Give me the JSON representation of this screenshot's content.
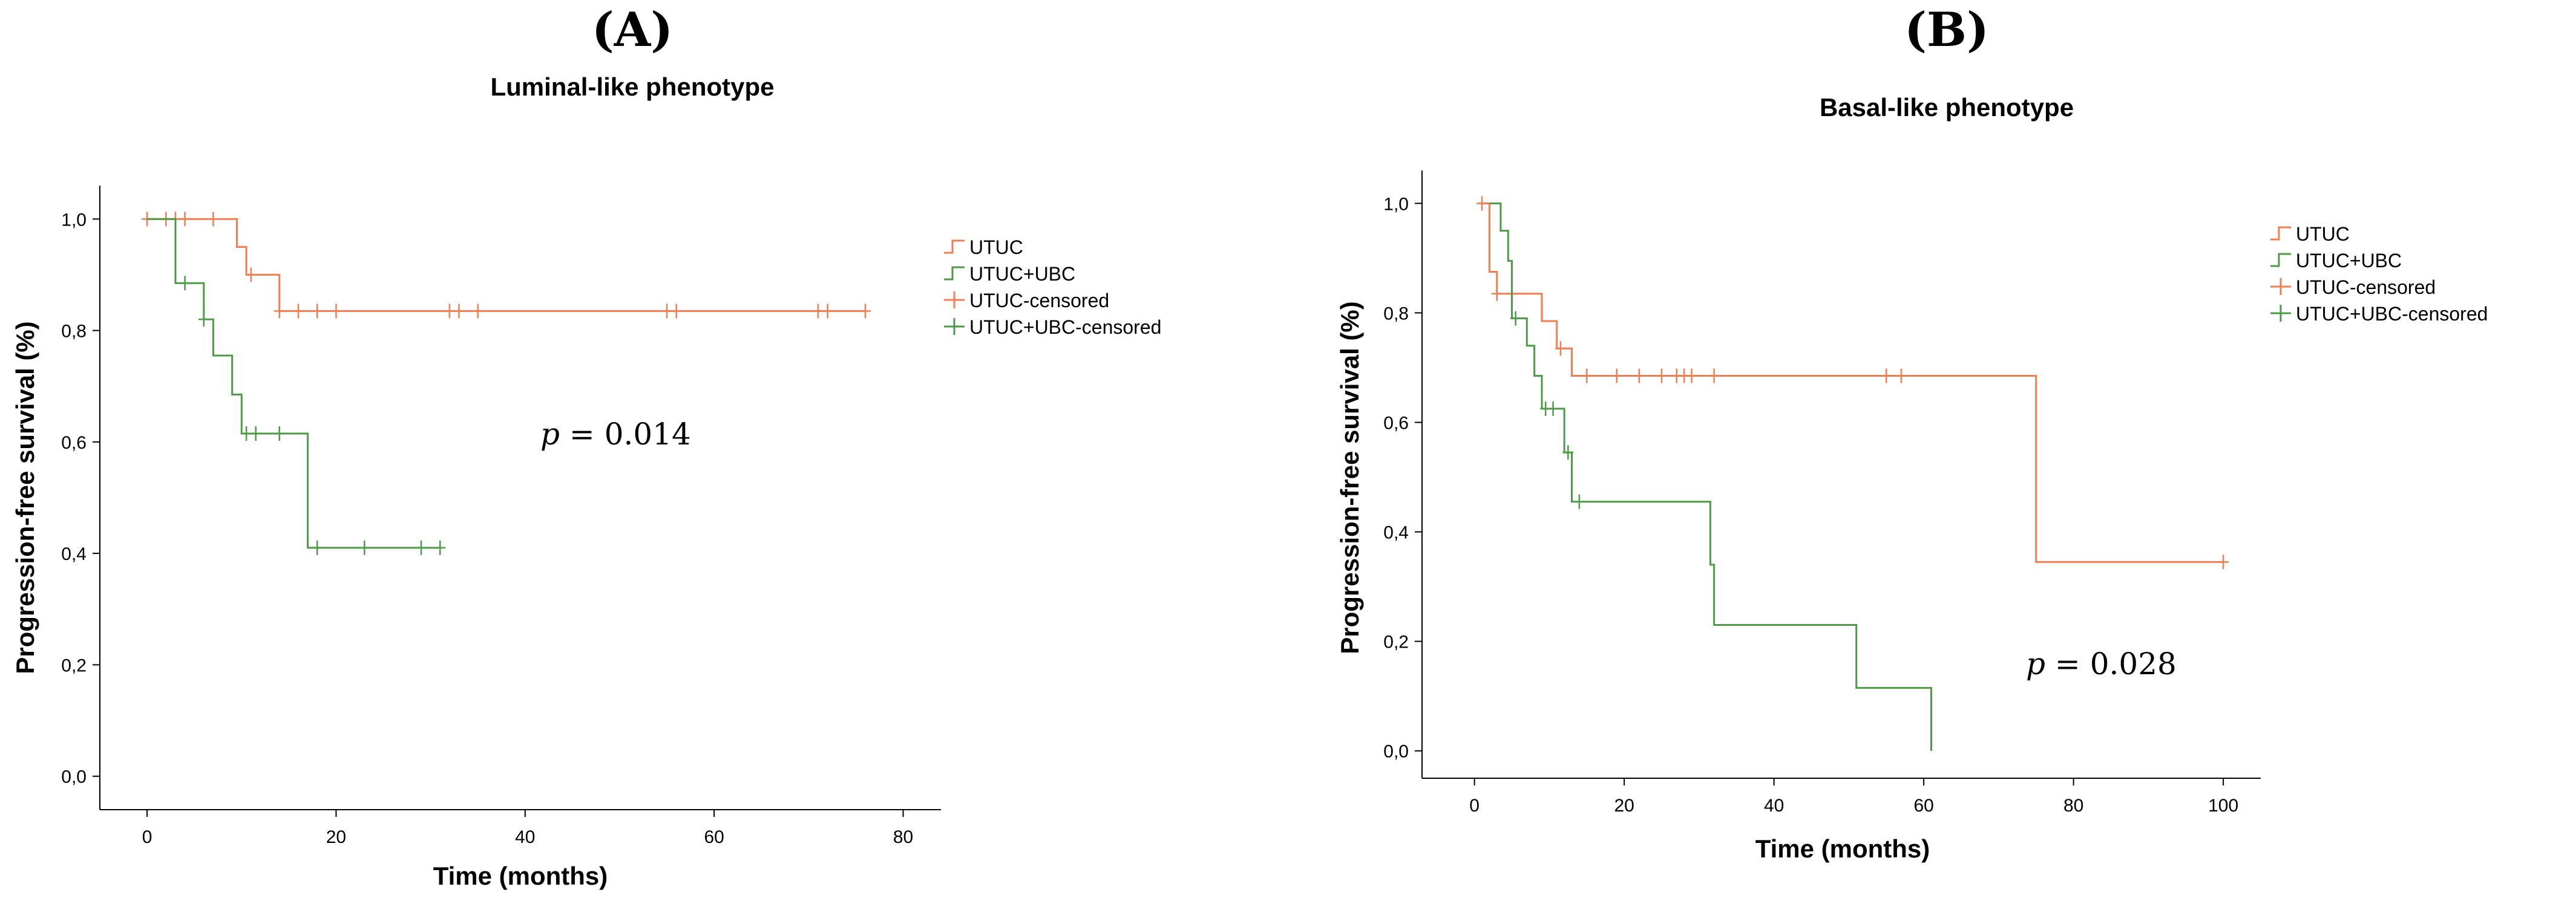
{
  "chart_data": [
    {
      "type": "line",
      "subtype": "kaplan-meier",
      "panel_label": "(A)",
      "title": "Luminal-like phenotype",
      "xlabel": "Time (months)",
      "ylabel": "Progression-free survival (%)",
      "xlim": [
        -5,
        84
      ],
      "ylim": [
        -0.06,
        1.06
      ],
      "xticks": [
        0,
        20,
        40,
        60,
        80
      ],
      "xtick_labels": [
        "0",
        "20",
        "40",
        "60",
        "80"
      ],
      "yticks": [
        0.0,
        0.2,
        0.4,
        0.6,
        0.8,
        1.0
      ],
      "ytick_labels": [
        "0,0",
        "0,2",
        "0,4",
        "0,6",
        "0,8",
        "1,0"
      ],
      "legend_position": "top-right",
      "annotation": {
        "p_symbol": "p",
        "p_value": " = 0.014",
        "at": [
          45,
          0.61
        ]
      },
      "legend": [
        {
          "label": "UTUC",
          "color": "#F07E52",
          "kind": "step"
        },
        {
          "label": "UTUC+UBC",
          "color": "#4E9A47",
          "kind": "step"
        },
        {
          "label": "UTUC-censored",
          "color": "#F07E52",
          "kind": "censor"
        },
        {
          "label": "UTUC+UBC-censored",
          "color": "#4E9A47",
          "kind": "censor"
        }
      ],
      "series": [
        {
          "name": "UTUC",
          "color": "#F07E52",
          "steps": [
            [
              0,
              1.0
            ],
            [
              9.5,
              0.95
            ],
            [
              10.5,
              0.9
            ],
            [
              14,
              0.835
            ],
            [
              76,
              0.835
            ]
          ],
          "censored": [
            [
              0,
              1.0
            ],
            [
              2,
              1.0
            ],
            [
              3,
              1.0
            ],
            [
              4,
              1.0
            ],
            [
              7,
              1.0
            ],
            [
              11,
              0.9
            ],
            [
              14,
              0.835
            ],
            [
              16,
              0.835
            ],
            [
              18,
              0.835
            ],
            [
              20,
              0.835
            ],
            [
              32,
              0.835
            ],
            [
              33,
              0.835
            ],
            [
              35,
              0.835
            ],
            [
              55,
              0.835
            ],
            [
              56,
              0.835
            ],
            [
              71,
              0.835
            ],
            [
              72,
              0.835
            ],
            [
              76,
              0.835
            ]
          ]
        },
        {
          "name": "UTUC+UBC",
          "color": "#4E9A47",
          "steps": [
            [
              0,
              1.0
            ],
            [
              3,
              0.885
            ],
            [
              6,
              0.82
            ],
            [
              7,
              0.755
            ],
            [
              9,
              0.685
            ],
            [
              10,
              0.615
            ],
            [
              17,
              0.41
            ],
            [
              31,
              0.41
            ]
          ],
          "censored": [
            [
              4,
              0.885
            ],
            [
              6,
              0.82
            ],
            [
              10.5,
              0.615
            ],
            [
              11.5,
              0.615
            ],
            [
              14,
              0.615
            ],
            [
              18,
              0.41
            ],
            [
              23,
              0.41
            ],
            [
              29,
              0.41
            ],
            [
              31,
              0.41
            ]
          ]
        }
      ]
    },
    {
      "type": "line",
      "subtype": "kaplan-meier",
      "panel_label": "(B)",
      "title": "Basal-like phenotype",
      "xlabel": "Time (months)",
      "ylabel": "Progression-free survival (%)",
      "xlim": [
        -7,
        105
      ],
      "ylim": [
        -0.05,
        1.06
      ],
      "xticks": [
        0,
        20,
        40,
        60,
        80,
        100
      ],
      "xtick_labels": [
        "0",
        "20",
        "40",
        "60",
        "80",
        "100"
      ],
      "yticks": [
        0.0,
        0.2,
        0.4,
        0.6,
        0.8,
        1.0
      ],
      "ytick_labels": [
        "0,0",
        "0,2",
        "0,4",
        "0,6",
        "0,8",
        "1,0"
      ],
      "legend_position": "top-right",
      "annotation": {
        "p_symbol": "p",
        "p_value": " = 0.028",
        "at": [
          74,
          0.16
        ]
      },
      "legend": [
        {
          "label": "UTUC",
          "color": "#F07E52",
          "kind": "step"
        },
        {
          "label": "UTUC+UBC",
          "color": "#4E9A47",
          "kind": "step"
        },
        {
          "label": "UTUC-censored",
          "color": "#F07E52",
          "kind": "censor"
        },
        {
          "label": "UTUC+UBC-censored",
          "color": "#4E9A47",
          "kind": "censor"
        }
      ],
      "series": [
        {
          "name": "UTUC",
          "color": "#F07E52",
          "steps": [
            [
              1,
              1.0
            ],
            [
              2,
              0.875
            ],
            [
              3,
              0.835
            ],
            [
              9,
              0.785
            ],
            [
              11,
              0.735
            ],
            [
              13,
              0.685
            ],
            [
              75,
              0.685
            ],
            [
              75,
              0.345
            ],
            [
              100,
              0.345
            ]
          ],
          "censored": [
            [
              1,
              1.0
            ],
            [
              3,
              0.835
            ],
            [
              11.5,
              0.735
            ],
            [
              15,
              0.685
            ],
            [
              19,
              0.685
            ],
            [
              22,
              0.685
            ],
            [
              25,
              0.685
            ],
            [
              27,
              0.685
            ],
            [
              28,
              0.685
            ],
            [
              29,
              0.685
            ],
            [
              32,
              0.685
            ],
            [
              55,
              0.685
            ],
            [
              57,
              0.685
            ],
            [
              100,
              0.345
            ]
          ]
        },
        {
          "name": "UTUC+UBC",
          "color": "#4E9A47",
          "steps": [
            [
              2,
              1.0
            ],
            [
              3.5,
              0.95
            ],
            [
              4.5,
              0.895
            ],
            [
              5,
              0.79
            ],
            [
              7,
              0.74
            ],
            [
              8,
              0.685
            ],
            [
              9,
              0.625
            ],
            [
              11,
              0.625
            ],
            [
              12,
              0.545
            ],
            [
              13,
              0.455
            ],
            [
              31,
              0.455
            ],
            [
              31.5,
              0.34
            ],
            [
              32,
              0.23
            ],
            [
              51,
              0.23
            ],
            [
              51,
              0.115
            ],
            [
              61,
              0.115
            ],
            [
              61,
              0.0
            ]
          ],
          "censored": [
            [
              5.5,
              0.79
            ],
            [
              9.5,
              0.625
            ],
            [
              10.5,
              0.625
            ],
            [
              12.5,
              0.545
            ],
            [
              14,
              0.455
            ]
          ]
        }
      ]
    }
  ]
}
